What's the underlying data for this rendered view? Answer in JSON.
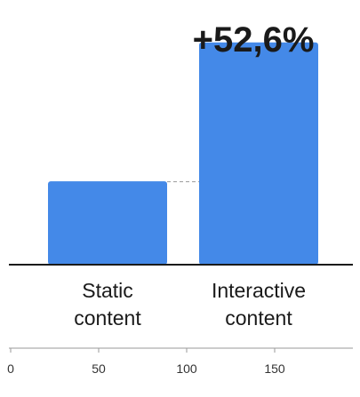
{
  "chart_data": {
    "type": "bar",
    "categories": [
      "Static content",
      "Interactive content"
    ],
    "category_labels": [
      [
        "Static",
        "content"
      ],
      [
        "Interactive",
        "content"
      ]
    ],
    "values": [
      81,
      216
    ],
    "annotation": "+52,6%",
    "xlim": [
      0,
      200
    ],
    "xticks": [
      0,
      50,
      100,
      150
    ],
    "bar_color": "#4489E8",
    "axis_color": "#1a1a1a",
    "text_color": "#1a1a1a",
    "tick_color": "#9a9a9a",
    "guide_color": "#9a9a9a",
    "grid": false,
    "legend": "none"
  }
}
